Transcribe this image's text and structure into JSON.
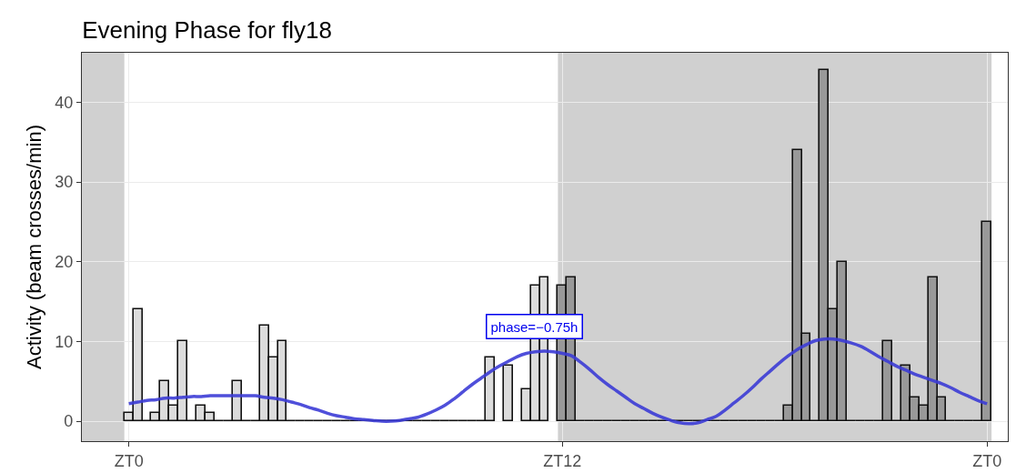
{
  "chart_data": {
    "type": "bar",
    "title": "Evening Phase for fly18",
    "ylabel": "Activity (beam crosses/min)",
    "categories": [
      "ZT0",
      null,
      null,
      null,
      null,
      null,
      null,
      null,
      null,
      null,
      null,
      null,
      null,
      null,
      null,
      null,
      null,
      null,
      null,
      null,
      null,
      null,
      null,
      null,
      null,
      null,
      null,
      null,
      null,
      null,
      null,
      null,
      null,
      null,
      null,
      null,
      null,
      null,
      null,
      null,
      null,
      null,
      null,
      null,
      null,
      null,
      null,
      null,
      "ZT12",
      null,
      null,
      null,
      null,
      null,
      null,
      null,
      null,
      null,
      null,
      null,
      null,
      null,
      null,
      null,
      null,
      null,
      null,
      null,
      null,
      null,
      null,
      null,
      null,
      null,
      null,
      null,
      null,
      null,
      null,
      null,
      null,
      null,
      null,
      null,
      null,
      null,
      null,
      null,
      null,
      null,
      null,
      null,
      null,
      null,
      null,
      "ZT0"
    ],
    "ylim": [
      -2.5,
      46.2
    ],
    "yticks": [
      0,
      10,
      20,
      30,
      40
    ],
    "grid": true,
    "annotations": [
      "phase=−0.75h"
    ],
    "series": [
      {
        "values": [
          1,
          14,
          0,
          1,
          5,
          2,
          10,
          0,
          2,
          1,
          0,
          0,
          5,
          0,
          0,
          12,
          8,
          10,
          0,
          0,
          0,
          0,
          0,
          0,
          0,
          0,
          0,
          0,
          0,
          0,
          0,
          0,
          0,
          0,
          0,
          0,
          0,
          0,
          0,
          0,
          8,
          null,
          7,
          null,
          4,
          17,
          18,
          null,
          17,
          18,
          0,
          0,
          0,
          0,
          0,
          0,
          0,
          0,
          0,
          0,
          0,
          0,
          0,
          0,
          0,
          0,
          0,
          0,
          0,
          0,
          0,
          0,
          0,
          2,
          34,
          11,
          0,
          44,
          14,
          20,
          0,
          0,
          0,
          0,
          10,
          0,
          7,
          3,
          2,
          18,
          3,
          0,
          0,
          0,
          0,
          25
        ],
        "colors": [
          "#dcdcdc",
          "#dcdcdc",
          "#111111",
          "#dcdcdc",
          "#dcdcdc",
          "#dcdcdc",
          "#dcdcdc",
          "#111111",
          "#dcdcdc",
          "#dcdcdc",
          "#111111",
          "#111111",
          "#dcdcdc",
          "#111111",
          "#111111",
          "#dcdcdc",
          "#dcdcdc",
          "#dcdcdc",
          "#111111",
          "#111111",
          "#111111",
          "#111111",
          "#111111",
          "#111111",
          "#111111",
          "#111111",
          "#111111",
          "#111111",
          "#111111",
          "#111111",
          "#111111",
          "#111111",
          "#111111",
          "#111111",
          "#111111",
          "#111111",
          "#111111",
          "#111111",
          "#111111",
          "#111111",
          "#dcdcdc",
          "#dcdcdc",
          "#dcdcdc",
          "#dcdcdc",
          "#dcdcdc",
          "#dcdcdc",
          "#dcdcdc",
          "#dcdcdc",
          "#999999",
          "#999999",
          "#111111",
          "#111111",
          "#111111",
          "#111111",
          "#111111",
          "#111111",
          "#111111",
          "#111111",
          "#111111",
          "#111111",
          "#111111",
          "#111111",
          "#111111",
          "#111111",
          "#111111",
          "#111111",
          "#111111",
          "#111111",
          "#111111",
          "#111111",
          "#111111",
          "#111111",
          "#111111",
          "#999999",
          "#999999",
          "#999999",
          "#111111",
          "#999999",
          "#999999",
          "#999999",
          "#111111",
          "#111111",
          "#111111",
          "#111111",
          "#999999",
          "#111111",
          "#999999",
          "#999999",
          "#999999",
          "#999999",
          "#999999",
          "#111111",
          "#111111",
          "#111111",
          "#111111",
          "#999999"
        ]
      },
      {
        "type": "line",
        "color": "#3c3cd6",
        "values": [
          2.2,
          2.4,
          2.6,
          2.7,
          2.9,
          2.9,
          3.0,
          3.1,
          3.1,
          3.2,
          3.2,
          3.2,
          3.2,
          3.2,
          3.2,
          3.0,
          2.9,
          2.7,
          2.4,
          2.1,
          1.7,
          1.4,
          1.0,
          0.7,
          0.5,
          0.3,
          0.2,
          0.1,
          0,
          0,
          0.1,
          0.3,
          0.5,
          0.9,
          1.4,
          2.0,
          2.8,
          3.7,
          4.6,
          5.4,
          6.2,
          6.9,
          7.5,
          8.1,
          8.5,
          8.7,
          8.8,
          8.7,
          8.5,
          8.2,
          7.4,
          6.5,
          5.5,
          4.6,
          3.8,
          3.0,
          2.2,
          1.6,
          1.0,
          0.5,
          0.1,
          -0.2,
          -0.3,
          -0.2,
          0.2,
          0.6,
          1.4,
          2.3,
          3.2,
          4.2,
          5.3,
          6.3,
          7.3,
          8.2,
          9.0,
          9.6,
          10.1,
          10.3,
          10.3,
          10.1,
          9.8,
          9.4,
          8.8,
          8.1,
          7.5,
          6.9,
          6.4,
          5.9,
          5.5,
          5.1,
          4.7,
          4.2,
          3.6,
          3.1,
          2.6,
          2.2
        ]
      }
    ]
  }
}
